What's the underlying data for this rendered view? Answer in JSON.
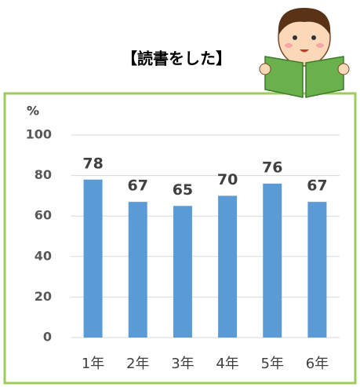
{
  "chart_data": {
    "type": "bar",
    "title": "【読書をした】",
    "ylabel": "%",
    "categories": [
      "1年",
      "2年",
      "3年",
      "4年",
      "5年",
      "6年"
    ],
    "values": [
      78,
      67,
      65,
      70,
      76,
      67
    ],
    "color": "#5b9bd5",
    "ylim": [
      0,
      100
    ],
    "yticks": [
      0,
      20,
      40,
      60,
      80,
      100
    ],
    "grid": true
  }
}
